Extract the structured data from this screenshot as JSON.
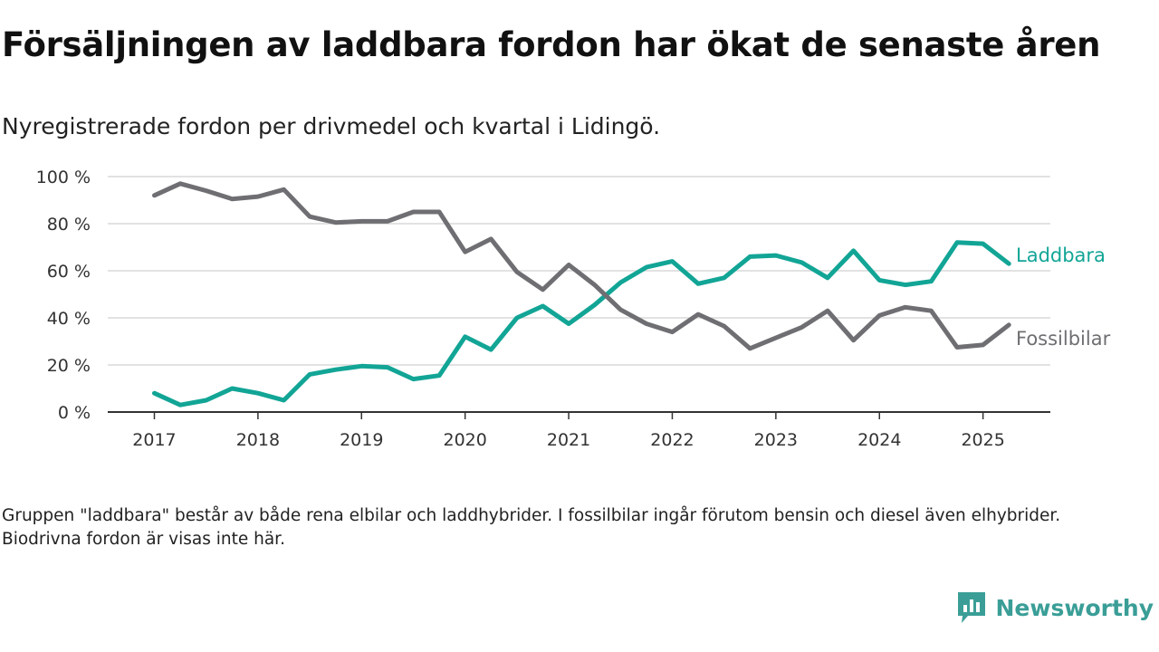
{
  "title": "Försäljningen av laddbara fordon har ökat de senaste åren",
  "subtitle": "Nyregistrerade fordon per drivmedel och kvartal i Lidingö.",
  "footnote": "Gruppen \"laddbara\" består av både rena elbilar och laddhybrider. I fossilbilar ingår förutom bensin och diesel även elhybrider. Biodrivna fordon är visas inte här.",
  "brand": {
    "name": "Newsworthy",
    "logo_icon": "newsworthy-logo-icon",
    "color": "#3a9e97"
  },
  "chart_data": {
    "type": "line",
    "x_start": 2017,
    "x_step": 0.25,
    "xlim": [
      2016.55,
      2025.65
    ],
    "ylim": [
      0,
      100
    ],
    "y_ticks": [
      0,
      20,
      40,
      60,
      80,
      100
    ],
    "y_tick_labels": [
      "0 %",
      "20 %",
      "40 %",
      "60 %",
      "80 %",
      "100 %"
    ],
    "x_ticks": [
      2017,
      2018,
      2019,
      2020,
      2021,
      2022,
      2023,
      2024,
      2025
    ],
    "x_tick_labels": [
      "2017",
      "2018",
      "2019",
      "2020",
      "2021",
      "2022",
      "2023",
      "2024",
      "2025"
    ],
    "grid": "horizontal",
    "series": [
      {
        "name": "Laddbara",
        "color": "#12a596",
        "values": [
          8,
          3,
          5,
          10,
          8,
          5,
          16,
          18,
          19.5,
          19,
          14,
          15.5,
          32,
          26.5,
          40,
          45,
          37.5,
          45.5,
          55,
          61.5,
          64,
          54.5,
          57,
          66,
          66.5,
          63.5,
          57,
          68.5,
          56,
          54,
          55.5,
          72,
          71.5,
          63
        ]
      },
      {
        "name": "Fossilbilar",
        "color": "#6f6f73",
        "values": [
          92,
          97,
          94,
          90.5,
          91.5,
          94.5,
          83,
          80.5,
          81,
          81,
          85,
          85,
          68,
          73.5,
          59.5,
          52,
          62.5,
          54,
          43.5,
          37.5,
          34,
          41.5,
          36.5,
          27,
          31.5,
          36,
          43,
          30.5,
          41,
          44.5,
          43,
          27.5,
          28.5,
          37
        ]
      }
    ]
  }
}
